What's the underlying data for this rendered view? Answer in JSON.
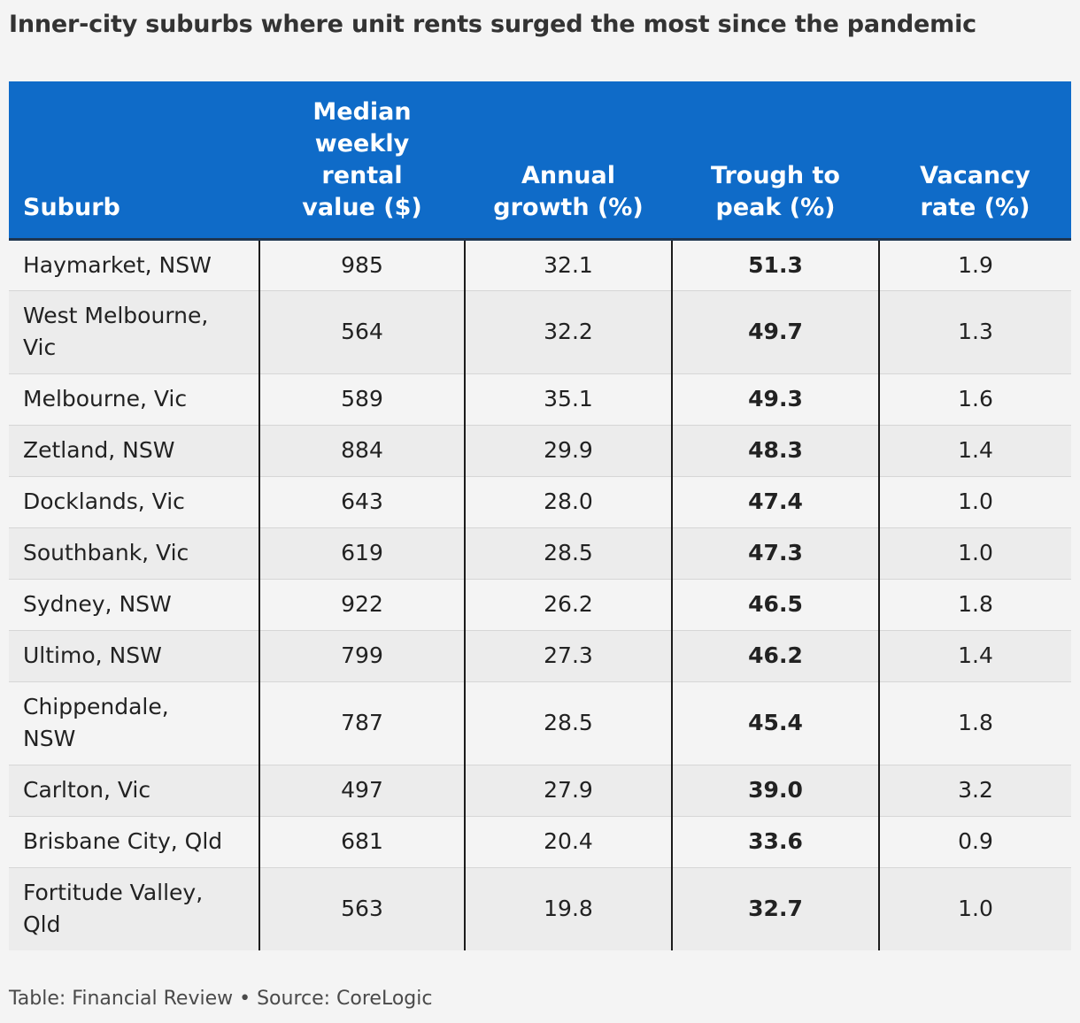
{
  "title": "Inner-city suburbs where unit rents surged the most since the pandemic",
  "footer": "Table: Financial Review • Source: CoreLogic",
  "colors": {
    "header_bg": "#0f6bc8",
    "header_text": "#ffffff",
    "row_odd": "#f4f4f4",
    "row_even": "#ececec"
  },
  "chart_data": {
    "type": "table",
    "title": "Inner-city suburbs where unit rents surged the most since the pandemic",
    "columns": [
      [
        "Suburb"
      ],
      [
        "Median",
        "weekly",
        "rental",
        "value ($)"
      ],
      [
        "Annual",
        "growth (%)"
      ],
      [
        "Trough to",
        "peak (%)"
      ],
      [
        "Vacancy",
        "rate (%)"
      ]
    ],
    "bold_column": 3,
    "rows": [
      [
        [
          "Haymarket, NSW"
        ],
        "985",
        "32.1",
        "51.3",
        "1.9"
      ],
      [
        [
          "West Melbourne,",
          "Vic"
        ],
        "564",
        "32.2",
        "49.7",
        "1.3"
      ],
      [
        [
          "Melbourne, Vic"
        ],
        "589",
        "35.1",
        "49.3",
        "1.6"
      ],
      [
        [
          "Zetland, NSW"
        ],
        "884",
        "29.9",
        "48.3",
        "1.4"
      ],
      [
        [
          "Docklands, Vic"
        ],
        "643",
        "28.0",
        "47.4",
        "1.0"
      ],
      [
        [
          "Southbank, Vic"
        ],
        "619",
        "28.5",
        "47.3",
        "1.0"
      ],
      [
        [
          "Sydney, NSW"
        ],
        "922",
        "26.2",
        "46.5",
        "1.8"
      ],
      [
        [
          "Ultimo, NSW"
        ],
        "799",
        "27.3",
        "46.2",
        "1.4"
      ],
      [
        [
          "Chippendale,",
          "NSW"
        ],
        "787",
        "28.5",
        "45.4",
        "1.8"
      ],
      [
        [
          "Carlton, Vic"
        ],
        "497",
        "27.9",
        "39.0",
        "3.2"
      ],
      [
        [
          "Brisbane City, Qld"
        ],
        "681",
        "20.4",
        "33.6",
        "0.9"
      ],
      [
        [
          "Fortitude Valley,",
          "Qld"
        ],
        "563",
        "19.8",
        "32.7",
        "1.0"
      ]
    ]
  }
}
